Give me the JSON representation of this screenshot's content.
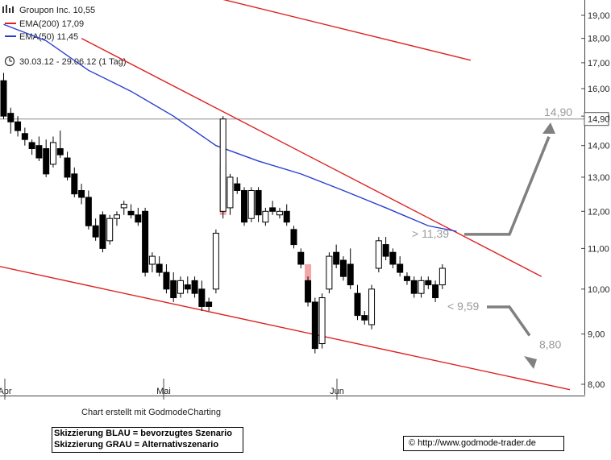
{
  "header": {
    "symbol_text": "Groupon Inc. 10,55",
    "ema200_text": "EMA(200) 17,09",
    "ema50_text": "EMA(50) 11,45",
    "period_text": "30.03.12 - 29.06.12 (1 Tag)"
  },
  "colors": {
    "ema200": "#dd2222",
    "ema50": "#2a3fd0",
    "trendline": "#dd2222",
    "scenario": "#808080",
    "volume_highlight": "#f4a6a6"
  },
  "icons": [
    "clock-icon",
    "chart-logo-icon"
  ],
  "footer": {
    "credit": "Chart erstellt mit GodmodeCharting",
    "note_line1": "Skizzierung BLAU = bevorzugtes Szenario",
    "note_line2": "Skizzierung GRAU = Alternativszenario",
    "url": "http://www.godmode-trader.de"
  },
  "chart_data": {
    "type": "candlestick",
    "title": "Groupon Inc. 10,55",
    "y_scale": "log",
    "ylim": [
      7.7,
      19.5
    ],
    "y_ticks": [
      "19,00",
      "18,00",
      "17,00",
      "16,00",
      "15,00",
      "14,00",
      "13,00",
      "12,00",
      "11,00",
      "10,00",
      "9,00",
      "8,00"
    ],
    "y_tick_values": [
      19,
      18,
      17,
      16,
      15,
      14,
      13,
      12,
      11,
      10,
      9,
      8
    ],
    "x_ticks": [
      "Apr",
      "Mai",
      "Jun"
    ],
    "last_price_label": "14,90",
    "horizontal_level": 14.9,
    "candles": [
      {
        "o": 16.3,
        "h": 16.6,
        "l": 14.9,
        "c": 15.0
      },
      {
        "o": 15.1,
        "h": 15.3,
        "l": 14.4,
        "c": 14.8
      },
      {
        "o": 14.8,
        "h": 15.0,
        "l": 14.3,
        "c": 14.5
      },
      {
        "o": 14.4,
        "h": 14.6,
        "l": 14.0,
        "c": 14.2
      },
      {
        "o": 14.1,
        "h": 14.2,
        "l": 13.7,
        "c": 13.9
      },
      {
        "o": 14.0,
        "h": 14.3,
        "l": 13.5,
        "c": 13.6
      },
      {
        "o": 13.9,
        "h": 14.2,
        "l": 13.0,
        "c": 13.1
      },
      {
        "o": 13.4,
        "h": 14.3,
        "l": 13.3,
        "c": 14.1
      },
      {
        "o": 13.9,
        "h": 14.5,
        "l": 13.6,
        "c": 13.7
      },
      {
        "o": 13.6,
        "h": 13.8,
        "l": 12.9,
        "c": 13.0
      },
      {
        "o": 13.1,
        "h": 13.3,
        "l": 12.4,
        "c": 12.5
      },
      {
        "o": 12.6,
        "h": 12.8,
        "l": 12.2,
        "c": 12.4
      },
      {
        "o": 12.4,
        "h": 12.6,
        "l": 11.5,
        "c": 11.6
      },
      {
        "o": 11.6,
        "h": 11.8,
        "l": 11.2,
        "c": 11.3
      },
      {
        "o": 11.9,
        "h": 12.0,
        "l": 10.9,
        "c": 11.0
      },
      {
        "o": 11.2,
        "h": 11.9,
        "l": 11.1,
        "c": 11.8
      },
      {
        "o": 11.8,
        "h": 12.0,
        "l": 11.6,
        "c": 11.9
      },
      {
        "o": 12.1,
        "h": 12.3,
        "l": 11.9,
        "c": 12.2
      },
      {
        "o": 12.0,
        "h": 12.2,
        "l": 11.8,
        "c": 11.9
      },
      {
        "o": 11.9,
        "h": 12.1,
        "l": 11.6,
        "c": 11.7
      },
      {
        "o": 12.0,
        "h": 12.1,
        "l": 10.3,
        "c": 10.4
      },
      {
        "o": 10.6,
        "h": 10.9,
        "l": 10.4,
        "c": 10.8
      },
      {
        "o": 10.6,
        "h": 10.8,
        "l": 10.3,
        "c": 10.4
      },
      {
        "o": 10.4,
        "h": 10.6,
        "l": 9.9,
        "c": 10.0
      },
      {
        "o": 10.2,
        "h": 10.4,
        "l": 9.7,
        "c": 9.8
      },
      {
        "o": 9.9,
        "h": 10.3,
        "l": 9.8,
        "c": 10.2
      },
      {
        "o": 10.1,
        "h": 10.3,
        "l": 9.9,
        "c": 10.0
      },
      {
        "o": 10.2,
        "h": 10.3,
        "l": 9.8,
        "c": 9.9
      },
      {
        "o": 10.0,
        "h": 10.2,
        "l": 9.5,
        "c": 9.6
      },
      {
        "o": 9.7,
        "h": 9.8,
        "l": 9.5,
        "c": 9.6
      },
      {
        "o": 10.0,
        "h": 11.5,
        "l": 9.9,
        "c": 11.4
      },
      {
        "o": 12.0,
        "h": 15.0,
        "l": 11.8,
        "c": 14.9
      },
      {
        "o": 12.1,
        "h": 13.1,
        "l": 11.9,
        "c": 13.0
      },
      {
        "o": 12.8,
        "h": 13.0,
        "l": 12.5,
        "c": 12.6
      },
      {
        "o": 12.6,
        "h": 12.7,
        "l": 11.6,
        "c": 11.7
      },
      {
        "o": 11.8,
        "h": 12.7,
        "l": 11.7,
        "c": 12.6
      },
      {
        "o": 12.6,
        "h": 12.7,
        "l": 11.7,
        "c": 11.9
      },
      {
        "o": 11.7,
        "h": 12.1,
        "l": 11.6,
        "c": 12.0
      },
      {
        "o": 12.1,
        "h": 12.3,
        "l": 11.9,
        "c": 12.0
      },
      {
        "o": 11.9,
        "h": 12.1,
        "l": 11.8,
        "c": 12.0
      },
      {
        "o": 12.0,
        "h": 12.2,
        "l": 11.6,
        "c": 11.7
      },
      {
        "o": 11.5,
        "h": 11.6,
        "l": 11.0,
        "c": 11.1
      },
      {
        "o": 10.9,
        "h": 11.0,
        "l": 10.5,
        "c": 10.6
      },
      {
        "o": 10.2,
        "h": 10.3,
        "l": 9.6,
        "c": 9.7
      },
      {
        "o": 9.7,
        "h": 9.8,
        "l": 8.6,
        "c": 8.7
      },
      {
        "o": 8.8,
        "h": 9.9,
        "l": 8.7,
        "c": 9.8
      },
      {
        "o": 10.0,
        "h": 10.9,
        "l": 9.9,
        "c": 10.8
      },
      {
        "o": 10.9,
        "h": 11.1,
        "l": 10.5,
        "c": 10.6
      },
      {
        "o": 10.7,
        "h": 10.8,
        "l": 10.2,
        "c": 10.3
      },
      {
        "o": 10.6,
        "h": 11.0,
        "l": 10.0,
        "c": 10.1
      },
      {
        "o": 9.9,
        "h": 10.1,
        "l": 9.3,
        "c": 9.4
      },
      {
        "o": 9.4,
        "h": 9.5,
        "l": 9.2,
        "c": 9.3
      },
      {
        "o": 9.2,
        "h": 10.1,
        "l": 9.1,
        "c": 10.0
      },
      {
        "o": 10.5,
        "h": 11.3,
        "l": 10.4,
        "c": 11.2
      },
      {
        "o": 11.1,
        "h": 11.3,
        "l": 10.7,
        "c": 10.8
      },
      {
        "o": 10.9,
        "h": 11.0,
        "l": 10.5,
        "c": 10.6
      },
      {
        "o": 10.6,
        "h": 10.8,
        "l": 10.3,
        "c": 10.4
      },
      {
        "o": 10.3,
        "h": 10.4,
        "l": 10.1,
        "c": 10.2
      },
      {
        "o": 10.2,
        "h": 10.3,
        "l": 9.8,
        "c": 9.9
      },
      {
        "o": 9.9,
        "h": 10.3,
        "l": 9.8,
        "c": 10.2
      },
      {
        "o": 10.2,
        "h": 10.3,
        "l": 10.0,
        "c": 10.1
      },
      {
        "o": 10.1,
        "h": 10.2,
        "l": 9.7,
        "c": 9.8
      },
      {
        "o": 10.1,
        "h": 10.6,
        "l": 10.0,
        "c": 10.5
      }
    ],
    "volume_highlights": [
      {
        "index": 31,
        "from": 11.9,
        "to": 13.4
      },
      {
        "index": 43,
        "from": 10.0,
        "to": 10.6
      }
    ],
    "ema50": [
      {
        "i": 0,
        "v": 18.6
      },
      {
        "i": 6,
        "v": 17.9
      },
      {
        "i": 12,
        "v": 16.7
      },
      {
        "i": 18,
        "v": 15.9
      },
      {
        "i": 24,
        "v": 15.0
      },
      {
        "i": 30,
        "v": 14.0
      },
      {
        "i": 36,
        "v": 13.5
      },
      {
        "i": 42,
        "v": 13.1
      },
      {
        "i": 48,
        "v": 12.6
      },
      {
        "i": 54,
        "v": 12.1
      },
      {
        "i": 60,
        "v": 11.6
      },
      {
        "i": 64,
        "v": 11.45
      }
    ],
    "ema200_segment": {
      "from": {
        "i": 30,
        "v": 19.8
      },
      "to": {
        "i": 66,
        "v": 17.1
      }
    },
    "upper_trendline": {
      "from": {
        "i": 11,
        "v": 18.0
      },
      "to": {
        "i": 76,
        "v": 10.3
      }
    },
    "lower_trendline": {
      "from": {
        "i": -2,
        "v": 10.6
      },
      "to": {
        "i": 80,
        "v": 7.9
      }
    },
    "scenarios": [
      {
        "label": "> 11,39",
        "trigger": 11.39,
        "target_label": "14,90",
        "target": 14.9
      },
      {
        "label": "< 9,59",
        "trigger": 9.59,
        "target_label": "8,80",
        "target": 8.8
      }
    ]
  }
}
